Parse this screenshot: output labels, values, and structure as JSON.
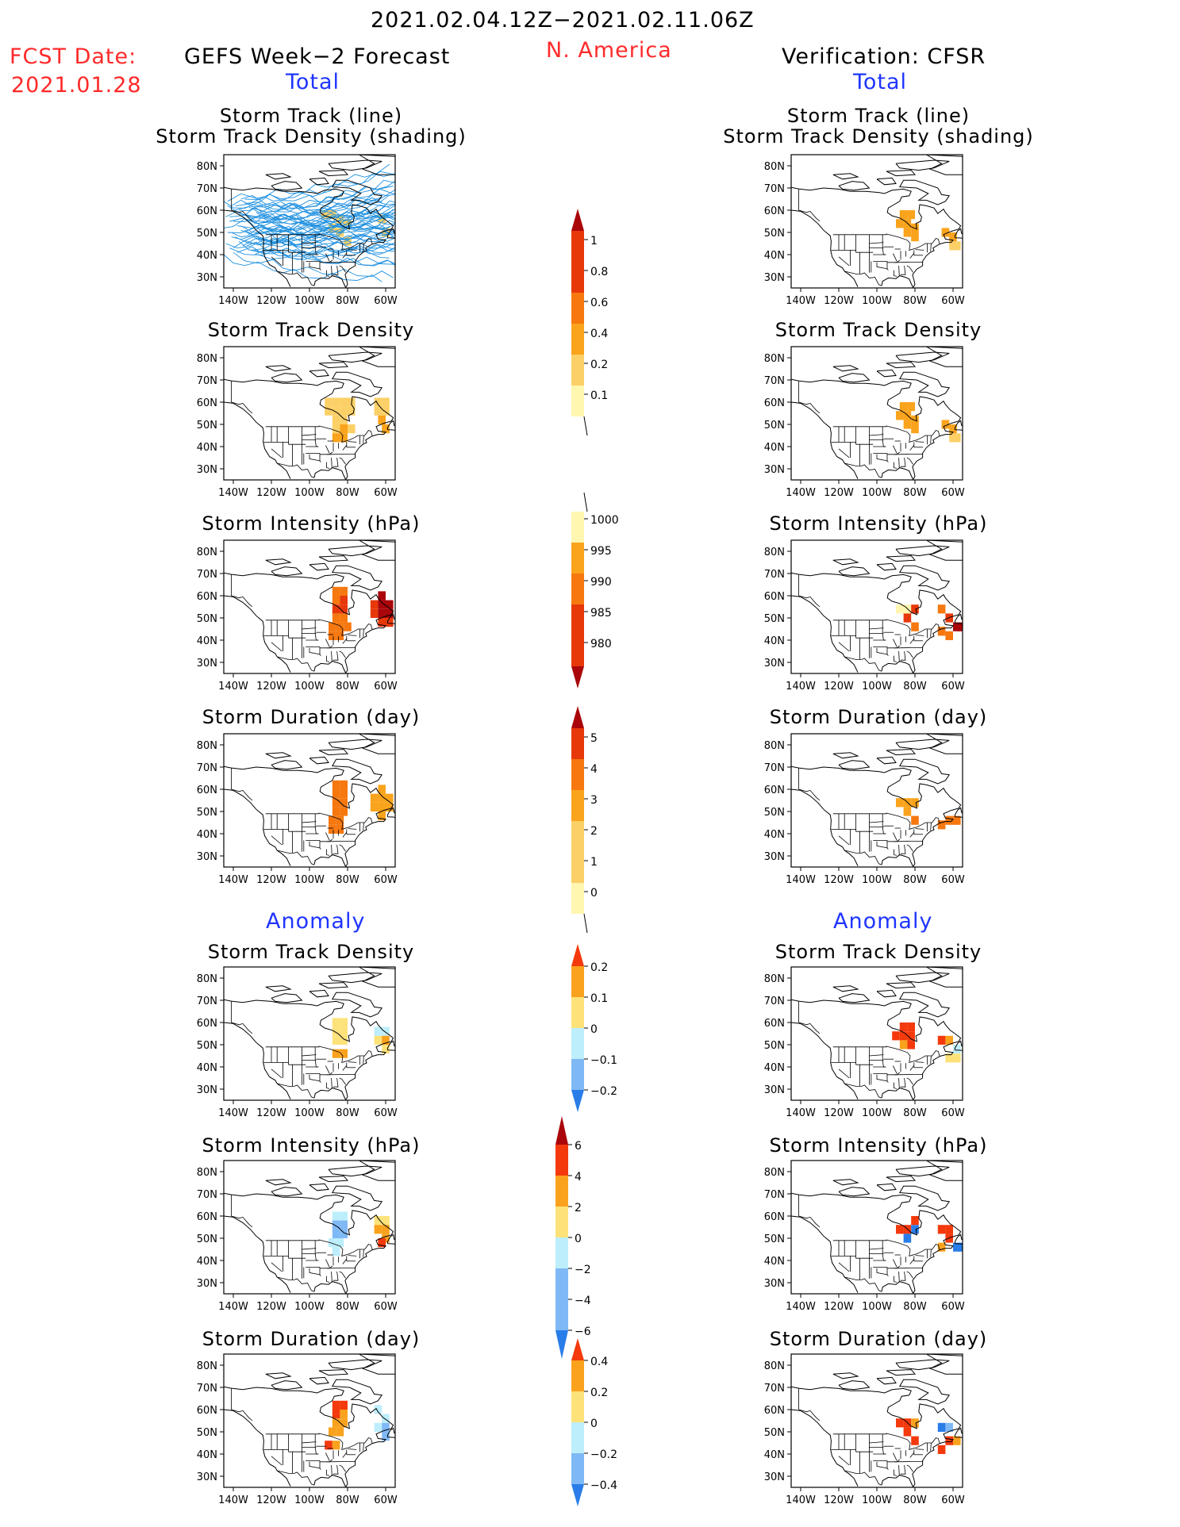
{
  "header": {
    "period": "2021.02.04.12Z−2021.02.11.06Z",
    "fcst_label": "FCST Date:",
    "fcst_date": "2021.01.28",
    "left_title": "GEFS Week−2 Forecast",
    "region": "N. America",
    "right_title": "Verification: CFSR",
    "total_label": "Total",
    "anomaly_label": "Anomaly"
  },
  "panel_titles": {
    "track_line": "Storm Track (line)",
    "track_shading": "Storm Track Density (shading)",
    "density": "Storm Track Density",
    "intensity": "Storm Intensity (hPa)",
    "duration": "Storm Duration (day)"
  },
  "colors": {
    "shade": [
      "#fff6b0",
      "#fcd067",
      "#faa31c",
      "#f6780f",
      "#e7380a",
      "#a9050a"
    ],
    "anom_pos": [
      "#fde27a",
      "#faa21d",
      "#f4390c"
    ],
    "anom_neg": [
      "#bdeefc",
      "#7fb9f5",
      "#2a7de8"
    ],
    "track": "#1f90df"
  },
  "chart_data": [
    {
      "type": "map-heatmap",
      "title": "Storm Track (line) / Storm Track Density (shading)",
      "column": "GEFS Week−2 Forecast",
      "lat_ticks": [
        "80N",
        "70N",
        "60N",
        "50N",
        "40N",
        "30N"
      ],
      "lon_ticks": [
        "140W",
        "120W",
        "100W",
        "80W",
        "60W"
      ],
      "xlim_lon": [
        -145,
        -55
      ],
      "ylim_lat": [
        25,
        85
      ],
      "storm_tracks_drawn": true,
      "cells": [
        [
          -92,
          58,
          1
        ],
        [
          -88,
          58,
          1
        ],
        [
          -84,
          56,
          1
        ],
        [
          -80,
          54,
          1
        ],
        [
          -88,
          52,
          1
        ],
        [
          -84,
          50,
          1
        ],
        [
          -80,
          46,
          1
        ],
        [
          -62,
          56,
          1
        ],
        [
          -60,
          50,
          1
        ]
      ]
    },
    {
      "type": "map-heatmap",
      "title": "Storm Track (line) / Storm Track Density (shading)",
      "column": "Verification: CFSR",
      "lat_ticks": [
        "80N",
        "70N",
        "60N",
        "50N",
        "40N",
        "30N"
      ],
      "lon_ticks": [
        "140W",
        "120W",
        "100W",
        "80W",
        "60W"
      ],
      "xlim_lon": [
        -145,
        -55
      ],
      "ylim_lat": [
        25,
        85
      ],
      "storm_tracks_drawn": false,
      "cells": [
        [
          -86,
          58,
          2
        ],
        [
          -82,
          58,
          2
        ],
        [
          -88,
          54,
          2
        ],
        [
          -84,
          54,
          2
        ],
        [
          -80,
          52,
          2
        ],
        [
          -84,
          50,
          2
        ],
        [
          -80,
          48,
          2
        ],
        [
          -64,
          50,
          2
        ],
        [
          -60,
          48,
          2
        ],
        [
          -60,
          44,
          1
        ],
        [
          -58,
          44,
          1
        ]
      ]
    },
    {
      "type": "map-heatmap",
      "title": "Storm Track Density",
      "column": "GEFS Week−2 Forecast",
      "colorbar": {
        "levels": [
          "0.1",
          "0.2",
          "0.4",
          "0.6",
          "0.8",
          "1"
        ]
      },
      "cells": [
        [
          -90,
          60,
          1
        ],
        [
          -86,
          60,
          1
        ],
        [
          -82,
          60,
          1
        ],
        [
          -78,
          60,
          1
        ],
        [
          -90,
          56,
          1
        ],
        [
          -86,
          56,
          1
        ],
        [
          -82,
          56,
          1
        ],
        [
          -78,
          56,
          1
        ],
        [
          -86,
          52,
          1
        ],
        [
          -82,
          52,
          1
        ],
        [
          -86,
          48,
          1
        ],
        [
          -82,
          48,
          2
        ],
        [
          -78,
          48,
          1
        ],
        [
          -86,
          44,
          2
        ],
        [
          -82,
          44,
          2
        ],
        [
          -64,
          60,
          1
        ],
        [
          -60,
          60,
          1
        ],
        [
          -64,
          56,
          1
        ],
        [
          -60,
          56,
          1
        ],
        [
          -62,
          52,
          2
        ],
        [
          -60,
          48,
          2
        ]
      ]
    },
    {
      "type": "map-heatmap",
      "title": "Storm Track Density",
      "column": "Verification: CFSR",
      "cells": [
        [
          -86,
          58,
          2
        ],
        [
          -82,
          58,
          2
        ],
        [
          -88,
          54,
          2
        ],
        [
          -84,
          54,
          2
        ],
        [
          -80,
          52,
          2
        ],
        [
          -84,
          50,
          2
        ],
        [
          -80,
          48,
          2
        ],
        [
          -64,
          50,
          2
        ],
        [
          -60,
          48,
          2
        ],
        [
          -60,
          44,
          1
        ],
        [
          -58,
          44,
          1
        ]
      ]
    },
    {
      "type": "map-heatmap",
      "title": "Storm Intensity (hPa)",
      "column": "GEFS Week−2 Forecast",
      "colorbar": {
        "levels": [
          "1000",
          "995",
          "990",
          "985",
          "980"
        ]
      },
      "cells": [
        [
          -86,
          62,
          3
        ],
        [
          -82,
          62,
          3
        ],
        [
          -86,
          58,
          3
        ],
        [
          -82,
          58,
          4
        ],
        [
          -86,
          54,
          4
        ],
        [
          -82,
          54,
          4
        ],
        [
          -86,
          50,
          3
        ],
        [
          -82,
          50,
          3
        ],
        [
          -88,
          46,
          3
        ],
        [
          -84,
          46,
          3
        ],
        [
          -80,
          46,
          3
        ],
        [
          -88,
          42,
          3
        ],
        [
          -84,
          42,
          3
        ],
        [
          -66,
          56,
          4
        ],
        [
          -62,
          60,
          5
        ],
        [
          -62,
          56,
          5
        ],
        [
          -58,
          56,
          5
        ],
        [
          -66,
          52,
          4
        ],
        [
          -62,
          52,
          5
        ],
        [
          -58,
          52,
          5
        ],
        [
          -62,
          48,
          4
        ],
        [
          -58,
          48,
          4
        ]
      ]
    },
    {
      "type": "map-heatmap",
      "title": "Storm Intensity (hPa)",
      "column": "Verification: CFSR",
      "cells": [
        [
          -88,
          54,
          0
        ],
        [
          -84,
          54,
          0
        ],
        [
          -80,
          54,
          4
        ],
        [
          -84,
          50,
          4
        ],
        [
          -80,
          46,
          3
        ],
        [
          -66,
          54,
          3
        ],
        [
          -62,
          50,
          4
        ],
        [
          -66,
          44,
          3
        ],
        [
          -62,
          42,
          3
        ],
        [
          -58,
          46,
          5
        ],
        [
          -56,
          46,
          5
        ]
      ]
    },
    {
      "type": "map-heatmap",
      "title": "Storm Duration (day)",
      "column": "GEFS Week−2 Forecast",
      "colorbar": {
        "levels": [
          "0",
          "1",
          "2",
          "3",
          "4",
          "5"
        ]
      },
      "cells": [
        [
          -86,
          62,
          3
        ],
        [
          -82,
          62,
          3
        ],
        [
          -86,
          58,
          3
        ],
        [
          -82,
          58,
          3
        ],
        [
          -86,
          54,
          3
        ],
        [
          -82,
          54,
          3
        ],
        [
          -86,
          50,
          3
        ],
        [
          -82,
          50,
          3
        ],
        [
          -88,
          46,
          3
        ],
        [
          -84,
          46,
          3
        ],
        [
          -88,
          42,
          3
        ],
        [
          -84,
          42,
          3
        ],
        [
          -66,
          56,
          2
        ],
        [
          -62,
          60,
          2
        ],
        [
          -62,
          56,
          2
        ],
        [
          -58,
          56,
          2
        ],
        [
          -66,
          52,
          2
        ],
        [
          -62,
          52,
          2
        ],
        [
          -58,
          52,
          2
        ],
        [
          -62,
          48,
          2
        ]
      ]
    },
    {
      "type": "map-heatmap",
      "title": "Storm Duration (day)",
      "column": "Verification: CFSR",
      "cells": [
        [
          -88,
          54,
          2
        ],
        [
          -84,
          54,
          2
        ],
        [
          -80,
          54,
          2
        ],
        [
          -84,
          50,
          2
        ],
        [
          -80,
          46,
          3
        ],
        [
          -66,
          44,
          3
        ],
        [
          -62,
          46,
          3
        ],
        [
          -58,
          46,
          3
        ]
      ]
    },
    {
      "type": "map-heatmap",
      "title": "Storm Track Density",
      "column": "GEFS Week−2 Forecast",
      "section": "Anomaly",
      "colorbar": {
        "levels": [
          "0.2",
          "0.1",
          "0",
          "−0.1",
          "−0.2"
        ]
      },
      "cells": [
        [
          -86,
          60,
          1
        ],
        [
          -82,
          60,
          1
        ],
        [
          -86,
          56,
          1
        ],
        [
          -82,
          56,
          1
        ],
        [
          -86,
          52,
          1
        ],
        [
          -82,
          52,
          1
        ],
        [
          -86,
          46,
          2
        ],
        [
          -82,
          46,
          2
        ],
        [
          -64,
          56,
          -1
        ],
        [
          -60,
          56,
          -1
        ],
        [
          -64,
          52,
          1
        ],
        [
          -60,
          52,
          2
        ],
        [
          -60,
          48,
          1
        ]
      ]
    },
    {
      "type": "map-heatmap",
      "title": "Storm Track Density",
      "column": "Verification: CFSR",
      "section": "Anomaly",
      "cells": [
        [
          -86,
          58,
          3
        ],
        [
          -82,
          58,
          3
        ],
        [
          -90,
          54,
          3
        ],
        [
          -86,
          54,
          3
        ],
        [
          -82,
          54,
          3
        ],
        [
          -86,
          50,
          2
        ],
        [
          -82,
          50,
          3
        ],
        [
          -66,
          52,
          3
        ],
        [
          -62,
          52,
          2
        ],
        [
          -58,
          48,
          -1
        ],
        [
          -62,
          44,
          1
        ],
        [
          -58,
          44,
          1
        ]
      ]
    },
    {
      "type": "map-heatmap",
      "title": "Storm Intensity (hPa)",
      "column": "GEFS Week−2 Forecast",
      "section": "Anomaly",
      "colorbar": {
        "levels": [
          "6",
          "4",
          "2",
          "0",
          "−2",
          "−4",
          "−6"
        ]
      },
      "cells": [
        [
          -86,
          60,
          -1
        ],
        [
          -82,
          60,
          -1
        ],
        [
          -86,
          56,
          -2
        ],
        [
          -82,
          56,
          -2
        ],
        [
          -86,
          52,
          -2
        ],
        [
          -82,
          52,
          -2
        ],
        [
          -88,
          48,
          -1
        ],
        [
          -84,
          48,
          -1
        ],
        [
          -86,
          44,
          -1
        ],
        [
          -64,
          58,
          1
        ],
        [
          -60,
          58,
          1
        ],
        [
          -64,
          54,
          2
        ],
        [
          -60,
          54,
          2
        ],
        [
          -60,
          50,
          2
        ],
        [
          -62,
          48,
          3
        ]
      ]
    },
    {
      "type": "map-heatmap",
      "title": "Storm Intensity (hPa)",
      "column": "Verification: CFSR",
      "section": "Anomaly",
      "cells": [
        [
          -88,
          54,
          3
        ],
        [
          -84,
          54,
          3
        ],
        [
          -80,
          54,
          -3
        ],
        [
          -84,
          50,
          -3
        ],
        [
          -80,
          58,
          3
        ],
        [
          -66,
          54,
          4
        ],
        [
          -62,
          54,
          4
        ],
        [
          -62,
          50,
          3
        ],
        [
          -66,
          46,
          2
        ],
        [
          -58,
          46,
          -3
        ],
        [
          -55,
          46,
          -3
        ]
      ]
    },
    {
      "type": "map-heatmap",
      "title": "Storm Duration (day)",
      "column": "GEFS Week−2 Forecast",
      "section": "Anomaly",
      "colorbar": {
        "levels": [
          "0.4",
          "0.2",
          "0",
          "−0.2",
          "−0.4"
        ]
      },
      "cells": [
        [
          -86,
          62,
          3
        ],
        [
          -82,
          62,
          3
        ],
        [
          -86,
          58,
          3
        ],
        [
          -82,
          58,
          2
        ],
        [
          -86,
          54,
          2
        ],
        [
          -82,
          54,
          2
        ],
        [
          -88,
          50,
          2
        ],
        [
          -84,
          50,
          2
        ],
        [
          -90,
          44,
          3
        ],
        [
          -86,
          44,
          2
        ],
        [
          -64,
          60,
          -1
        ],
        [
          -60,
          56,
          -1
        ],
        [
          -64,
          52,
          -1
        ],
        [
          -60,
          52,
          -2
        ],
        [
          -60,
          48,
          -2
        ]
      ]
    },
    {
      "type": "map-heatmap",
      "title": "Storm Duration (day)",
      "column": "Verification: CFSR",
      "section": "Anomaly",
      "cells": [
        [
          -88,
          54,
          3
        ],
        [
          -84,
          54,
          3
        ],
        [
          -80,
          54,
          2
        ],
        [
          -84,
          50,
          3
        ],
        [
          -80,
          46,
          3
        ],
        [
          -66,
          52,
          -3
        ],
        [
          -62,
          52,
          -2
        ],
        [
          -62,
          46,
          3
        ],
        [
          -58,
          46,
          2
        ],
        [
          -66,
          42,
          3
        ]
      ]
    }
  ]
}
